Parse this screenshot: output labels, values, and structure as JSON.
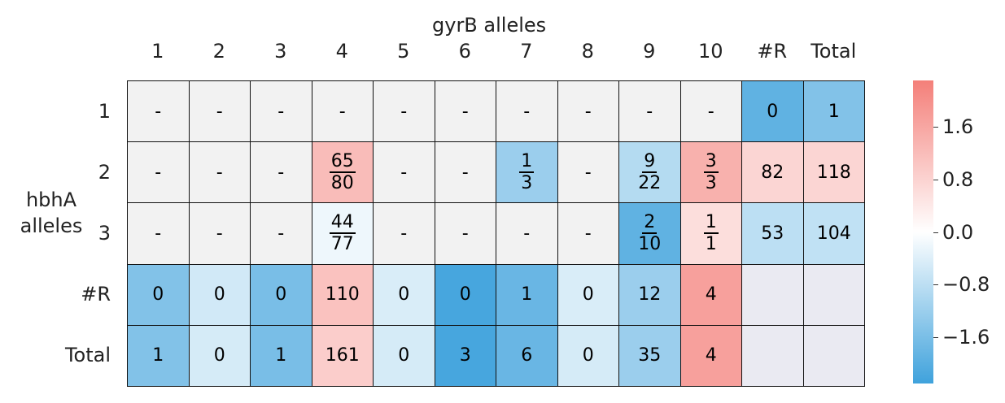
{
  "chart_data": {
    "type": "heatmap",
    "title": "gyrB alleles",
    "xlabel": "gyrB alleles",
    "ylabel": "hbhA alleles",
    "x_categories": [
      "1",
      "2",
      "3",
      "4",
      "5",
      "6",
      "7",
      "8",
      "9",
      "10",
      "#R",
      "Total"
    ],
    "y_categories": [
      "1",
      "2",
      "3",
      "#R",
      "Total"
    ],
    "cells": [
      [
        {
          "text": "-",
          "v": null
        },
        {
          "text": "-",
          "v": null
        },
        {
          "text": "-",
          "v": null
        },
        {
          "text": "-",
          "v": null
        },
        {
          "text": "-",
          "v": null
        },
        {
          "text": "-",
          "v": null
        },
        {
          "text": "-",
          "v": null
        },
        {
          "text": "-",
          "v": null
        },
        {
          "text": "-",
          "v": null
        },
        {
          "text": "-",
          "v": null
        },
        {
          "text": "0",
          "v": -1.9
        },
        {
          "text": "1",
          "v": -1.5
        }
      ],
      [
        {
          "text": "-",
          "v": null
        },
        {
          "text": "-",
          "v": null
        },
        {
          "text": "-",
          "v": null
        },
        {
          "num": "65",
          "den": "80",
          "v": 1.2
        },
        {
          "text": "-",
          "v": null
        },
        {
          "text": "-",
          "v": null
        },
        {
          "num": "1",
          "den": "3",
          "v": -1.2
        },
        {
          "text": "-",
          "v": null
        },
        {
          "num": "9",
          "den": "22",
          "v": -0.9
        },
        {
          "num": "3",
          "den": "3",
          "v": 1.4
        },
        {
          "text": "82",
          "v": 0.75
        },
        {
          "text": "118",
          "v": 0.75
        }
      ],
      [
        {
          "text": "-",
          "v": null
        },
        {
          "text": "-",
          "v": null
        },
        {
          "text": "-",
          "v": null
        },
        {
          "num": "44",
          "den": "77",
          "v": -0.2
        },
        {
          "text": "-",
          "v": null
        },
        {
          "text": "-",
          "v": null
        },
        {
          "text": "-",
          "v": null
        },
        {
          "text": "-",
          "v": null
        },
        {
          "num": "2",
          "den": "10",
          "v": -1.9
        },
        {
          "num": "1",
          "den": "1",
          "v": 0.6
        },
        {
          "text": "53",
          "v": -0.8
        },
        {
          "text": "104",
          "v": -0.75
        }
      ],
      [
        {
          "text": "0",
          "v": -1.5
        },
        {
          "text": "0",
          "v": -0.55
        },
        {
          "text": "0",
          "v": -1.6
        },
        {
          "text": "110",
          "v": 1.1
        },
        {
          "text": "0",
          "v": -0.45
        },
        {
          "text": "0",
          "v": -2.2
        },
        {
          "text": "1",
          "v": -1.8
        },
        {
          "text": "0",
          "v": -0.45
        },
        {
          "text": "12",
          "v": -1.2
        },
        {
          "text": "4",
          "v": 1.7
        },
        {
          "text": "",
          "v": "empty"
        },
        {
          "text": "",
          "v": "empty"
        }
      ],
      [
        {
          "text": "1",
          "v": -1.5
        },
        {
          "text": "0",
          "v": -0.5
        },
        {
          "text": "1",
          "v": -1.6
        },
        {
          "text": "161",
          "v": 0.9
        },
        {
          "text": "0",
          "v": -0.5
        },
        {
          "text": "3",
          "v": -2.2
        },
        {
          "text": "6",
          "v": -1.8
        },
        {
          "text": "0",
          "v": -0.5
        },
        {
          "text": "35",
          "v": -1.2
        },
        {
          "text": "4",
          "v": 1.7
        },
        {
          "text": "",
          "v": "empty"
        },
        {
          "text": "",
          "v": "empty"
        }
      ]
    ],
    "colorbar": {
      "ticks": [
        "1.6",
        "0.8",
        "0.0",
        "−0.8",
        "−1.6"
      ],
      "tick_values": [
        1.6,
        0.8,
        0.0,
        -0.8,
        -1.6
      ],
      "vmin": -2.3,
      "vmax": 2.3
    },
    "colors": {
      "negative": "#3fa2dc",
      "neutral": "#ffffff",
      "positive": "#f47f79",
      "missing": "#f2f2f2",
      "empty": "#eaeaf2"
    }
  }
}
